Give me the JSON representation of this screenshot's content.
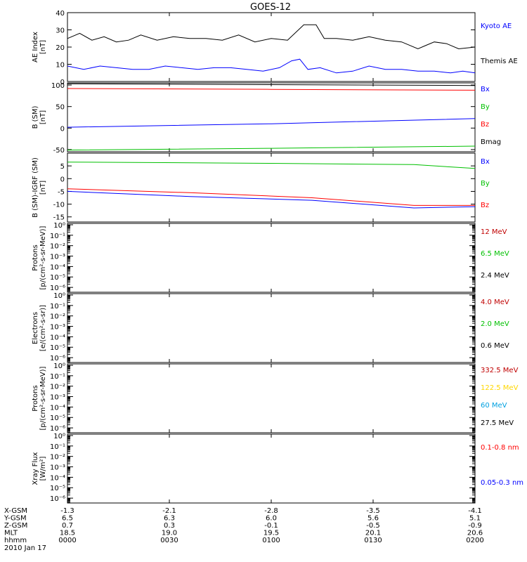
{
  "title": "GOES-12",
  "chart_data": [
    {
      "type": "line",
      "ylabel": [
        "AE Index",
        "[nT]"
      ],
      "ylim": [
        0,
        40
      ],
      "yticks": [
        "0",
        "10",
        "20",
        "30",
        "40"
      ],
      "legend": [
        {
          "text": "Kyoto AE",
          "color": "#0000ff"
        },
        {
          "text": "Themis AE",
          "color": "#000000"
        }
      ],
      "series": [
        {
          "name": "Themis AE",
          "color": "#000000",
          "x": [
            0,
            0.03,
            0.06,
            0.09,
            0.12,
            0.15,
            0.18,
            0.22,
            0.26,
            0.3,
            0.34,
            0.38,
            0.42,
            0.46,
            0.5,
            0.54,
            0.58,
            0.61,
            0.63,
            0.66,
            0.7,
            0.74,
            0.78,
            0.82,
            0.86,
            0.88,
            0.9,
            0.93,
            0.96,
            1.0
          ],
          "y": [
            25,
            28,
            24,
            26,
            23,
            24,
            27,
            24,
            26,
            25,
            25,
            24,
            27,
            23,
            25,
            24,
            33,
            33,
            25,
            25,
            24,
            26,
            24,
            23,
            19,
            21,
            23,
            22,
            19,
            20
          ]
        },
        {
          "name": "Kyoto AE",
          "color": "#0000ff",
          "x": [
            0,
            0.04,
            0.08,
            0.12,
            0.16,
            0.2,
            0.24,
            0.28,
            0.32,
            0.36,
            0.4,
            0.44,
            0.48,
            0.52,
            0.55,
            0.57,
            0.59,
            0.62,
            0.66,
            0.7,
            0.74,
            0.78,
            0.82,
            0.86,
            0.9,
            0.94,
            0.97,
            1.0
          ],
          "y": [
            9,
            7,
            9,
            8,
            7,
            7,
            9,
            8,
            7,
            8,
            8,
            7,
            6,
            8,
            12,
            13,
            7,
            8,
            5,
            6,
            9,
            7,
            7,
            6,
            6,
            5,
            6,
            5
          ]
        }
      ]
    },
    {
      "type": "line",
      "ylabel": [
        "B (SM)",
        "[nT]"
      ],
      "ylim": [
        -55,
        105
      ],
      "yticks": [
        "-50",
        "0",
        "50",
        "100"
      ],
      "yticksvals": [
        -50,
        0,
        50,
        100
      ],
      "legend": [
        {
          "text": "Bx",
          "color": "#0000ff"
        },
        {
          "text": "By",
          "color": "#00c000"
        },
        {
          "text": "Bz",
          "color": "#ff0000"
        },
        {
          "text": "Bmag",
          "color": "#000000"
        }
      ],
      "series": [
        {
          "name": "Bmag",
          "color": "#000000",
          "x": [
            0,
            0.5,
            1.0
          ],
          "y": [
            103,
            101,
            99
          ]
        },
        {
          "name": "Bz",
          "color": "#ff0000",
          "x": [
            0,
            0.5,
            1.0
          ],
          "y": [
            92,
            90,
            88
          ]
        },
        {
          "name": "Bx",
          "color": "#0000ff",
          "x": [
            0,
            0.5,
            1.0
          ],
          "y": [
            2,
            10,
            22
          ]
        },
        {
          "name": "By",
          "color": "#00c000",
          "x": [
            0,
            0.5,
            1.0
          ],
          "y": [
            -51,
            -47,
            -42
          ]
        }
      ]
    },
    {
      "type": "line",
      "ylabel": [
        "B (SM)-IGRF (SM)",
        "[nT]"
      ],
      "ylim": [
        -17,
        10
      ],
      "yticks": [
        "-15",
        "-10",
        "-5",
        "0",
        "5"
      ],
      "yticksvals": [
        -15,
        -10,
        -5,
        0,
        5
      ],
      "legend": [
        {
          "text": "Bx",
          "color": "#0000ff"
        },
        {
          "text": "By",
          "color": "#00c000"
        },
        {
          "text": "Bz",
          "color": "#ff0000"
        }
      ],
      "series": [
        {
          "name": "By",
          "color": "#00c000",
          "x": [
            0,
            0.5,
            0.85,
            1.0
          ],
          "y": [
            6.5,
            6.0,
            5.5,
            4.0
          ]
        },
        {
          "name": "Bz",
          "color": "#ff0000",
          "x": [
            0,
            0.3,
            0.6,
            0.85,
            1.0
          ],
          "y": [
            -4,
            -5.5,
            -7.5,
            -10.5,
            -10.5
          ]
        },
        {
          "name": "Bx",
          "color": "#0000ff",
          "x": [
            0,
            0.3,
            0.6,
            0.85,
            1.0
          ],
          "y": [
            -5,
            -7,
            -8.5,
            -11.5,
            -11
          ]
        }
      ]
    },
    {
      "type": "line",
      "log": true,
      "ylabel": [
        "Protons",
        "[p/(cm²-s-sr-MeV)]"
      ],
      "legend": [
        {
          "text": "12 MeV",
          "color": "#c00000"
        },
        {
          "text": "6.5 MeV",
          "color": "#00c000"
        },
        {
          "text": "2.4 MeV",
          "color": "#000000"
        }
      ],
      "series": []
    },
    {
      "type": "line",
      "log": true,
      "ylabel": [
        "Electrons",
        "[e/(cm²-s-sr)]"
      ],
      "legend": [
        {
          "text": "4.0 MeV",
          "color": "#c00000"
        },
        {
          "text": "2.0 MeV",
          "color": "#00c000"
        },
        {
          "text": "0.6 MeV",
          "color": "#000000"
        }
      ],
      "series": []
    },
    {
      "type": "line",
      "log": true,
      "ylabel": [
        "Protons",
        "[p/(cm²-s-sr-MeV)]"
      ],
      "legend": [
        {
          "text": "332.5 MeV",
          "color": "#c00000"
        },
        {
          "text": "122.5 MeV",
          "color": "#ffd700"
        },
        {
          "text": "60 MeV",
          "color": "#00a0e0"
        },
        {
          "text": "27.5 MeV",
          "color": "#000000"
        }
      ],
      "series": []
    },
    {
      "type": "line",
      "log": true,
      "ylabel": [
        "Xray Flux",
        "[W/m²]"
      ],
      "legend": [
        {
          "text": "0.1-0.8 nm",
          "color": "#ff0000"
        },
        {
          "text": "0.05-0.3 nm",
          "color": "#0000ff"
        }
      ],
      "series": []
    }
  ],
  "log_ticks": [
    "10⁰",
    "10⁻¹",
    "10⁻²",
    "10⁻³",
    "10⁻⁴",
    "10⁻⁵",
    "10⁻⁶"
  ],
  "orbit": {
    "rows": [
      {
        "label": "X-GSM",
        "values": [
          "-1.3",
          "-2.1",
          "-2.8",
          "-3.5",
          "-4.1"
        ]
      },
      {
        "label": "Y-GSM",
        "values": [
          "6.5",
          "6.3",
          "6.0",
          "5.6",
          "5.1"
        ]
      },
      {
        "label": "Z-GSM",
        "values": [
          "0.7",
          "0.3",
          "-0.1",
          "-0.5",
          "-0.9"
        ]
      },
      {
        "label": "MLT",
        "values": [
          "18.5",
          "19.0",
          "19.5",
          "20.1",
          "20.6"
        ]
      },
      {
        "label": "hhmm",
        "values": [
          "0000",
          "0030",
          "0100",
          "0130",
          "0200"
        ]
      }
    ],
    "date": "2010 Jan 17"
  }
}
